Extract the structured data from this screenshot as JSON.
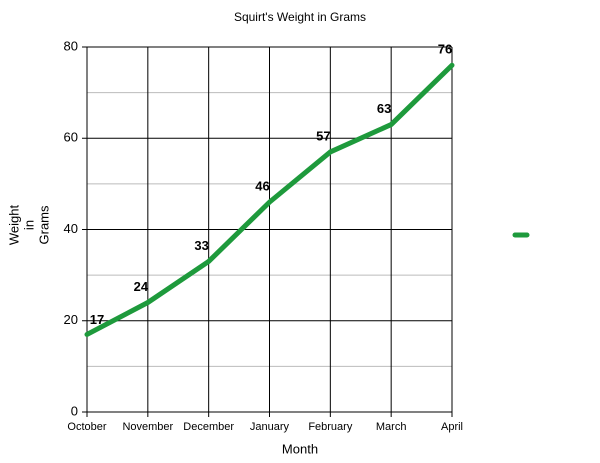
{
  "chart_data": {
    "type": "line",
    "title": "Squirt's Weight in Grams",
    "x_label": "Month",
    "y_label": [
      "Weight",
      "in",
      "Grams"
    ],
    "categories": [
      "October",
      "November",
      "December",
      "January",
      "February",
      "March",
      "April"
    ],
    "series": [
      {
        "color": "#1e9a3c",
        "values": [
          17,
          24,
          33,
          46,
          57,
          63,
          76
        ]
      }
    ],
    "ylim": [
      0,
      80
    ],
    "yticks": [
      0,
      20,
      40,
      60,
      80
    ],
    "minor_yticks": [
      10,
      30,
      50,
      70
    ],
    "grid": true,
    "legend": "right"
  }
}
